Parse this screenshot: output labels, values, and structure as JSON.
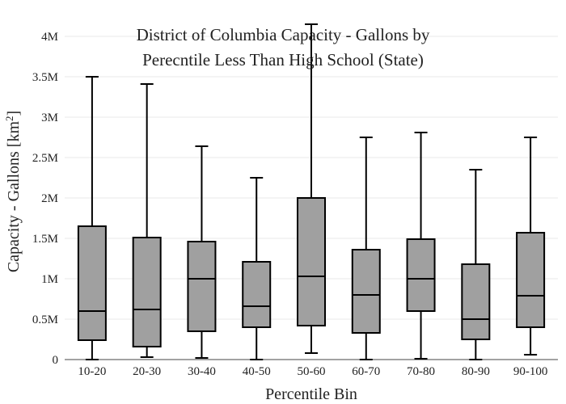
{
  "chart_data": {
    "type": "box",
    "title_line1": "District of Columbia Capacity - Gallons by",
    "title_line2": "Perecntile Less Than High School (State)",
    "xlabel": "Percentile Bin",
    "ylabel_main": "Capacity - Gallons  [km",
    "ylabel_sup": "2",
    "ylabel_end": "]",
    "ylim": [
      0,
      4000000
    ],
    "y_ticks": [
      {
        "value": 0,
        "label": "0"
      },
      {
        "value": 500000,
        "label": "0.5M"
      },
      {
        "value": 1000000,
        "label": "1M"
      },
      {
        "value": 1500000,
        "label": "1.5M"
      },
      {
        "value": 2000000,
        "label": "2M"
      },
      {
        "value": 2500000,
        "label": "2.5M"
      },
      {
        "value": 3000000,
        "label": "3M"
      },
      {
        "value": 3500000,
        "label": "3.5M"
      },
      {
        "value": 4000000,
        "label": "4M"
      }
    ],
    "grid": true,
    "box_color": "#a0a0a0",
    "categories": [
      "10-20",
      "20-30",
      "30-40",
      "40-50",
      "50-60",
      "60-70",
      "70-80",
      "80-90",
      "90-100"
    ],
    "boxes": [
      {
        "min": 0,
        "q1": 240000,
        "median": 600000,
        "q3": 1650000,
        "max": 3500000
      },
      {
        "min": 30000,
        "q1": 160000,
        "median": 620000,
        "q3": 1510000,
        "max": 3410000
      },
      {
        "min": 20000,
        "q1": 350000,
        "median": 1000000,
        "q3": 1460000,
        "max": 2640000
      },
      {
        "min": 0,
        "q1": 400000,
        "median": 660000,
        "q3": 1210000,
        "max": 2250000
      },
      {
        "min": 80000,
        "q1": 420000,
        "median": 1030000,
        "q3": 2000000,
        "max": 4150000
      },
      {
        "min": 0,
        "q1": 330000,
        "median": 800000,
        "q3": 1360000,
        "max": 2750000
      },
      {
        "min": 10000,
        "q1": 600000,
        "median": 1000000,
        "q3": 1490000,
        "max": 2810000
      },
      {
        "min": 0,
        "q1": 250000,
        "median": 500000,
        "q3": 1180000,
        "max": 2350000
      },
      {
        "min": 60000,
        "q1": 400000,
        "median": 790000,
        "q3": 1570000,
        "max": 2750000
      }
    ]
  }
}
